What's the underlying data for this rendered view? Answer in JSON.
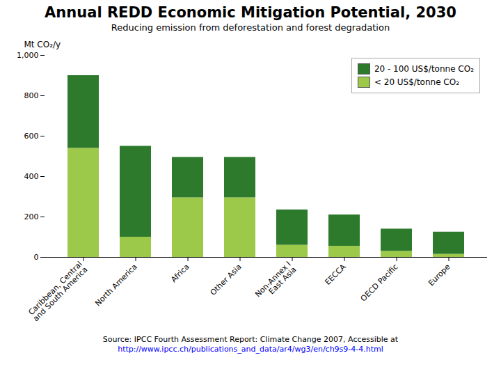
{
  "chart_data": {
    "type": "bar",
    "title": "Annual REDD Economic Mitigation Potential, 2030",
    "subtitle": "Reducing emission from deforestation and forest degradation",
    "ylabel": "Mt CO₂/y",
    "categories": [
      "Caribbean, Central\nand South America",
      "North America",
      "Africa",
      "Other Asia",
      "Non-Annex I\nEast Asia",
      "EECCA",
      "OECD Pacific",
      "Europe"
    ],
    "series": [
      {
        "name": "< 20 US$/tonne CO₂",
        "color": "#9dc94a",
        "values": [
          540,
          100,
          295,
          295,
          60,
          55,
          30,
          15
        ]
      },
      {
        "name": "20 - 100 US$/tonne CO₂",
        "color": "#2d7a2d",
        "values": [
          360,
          450,
          200,
          200,
          175,
          155,
          110,
          110
        ]
      }
    ],
    "stacked": true,
    "ylim": [
      0,
      1000
    ],
    "yticks": [
      0,
      200,
      400,
      600,
      800,
      1000
    ],
    "grid": false,
    "legend": "upper right",
    "annotations": [
      "Source: IPCC Fourth Assessment Report: Climate Change 2007, Accessible at",
      "http://www.ipcc.ch/publications_and_data/ar4/wg3/en/ch9s9-4-4.html"
    ]
  }
}
